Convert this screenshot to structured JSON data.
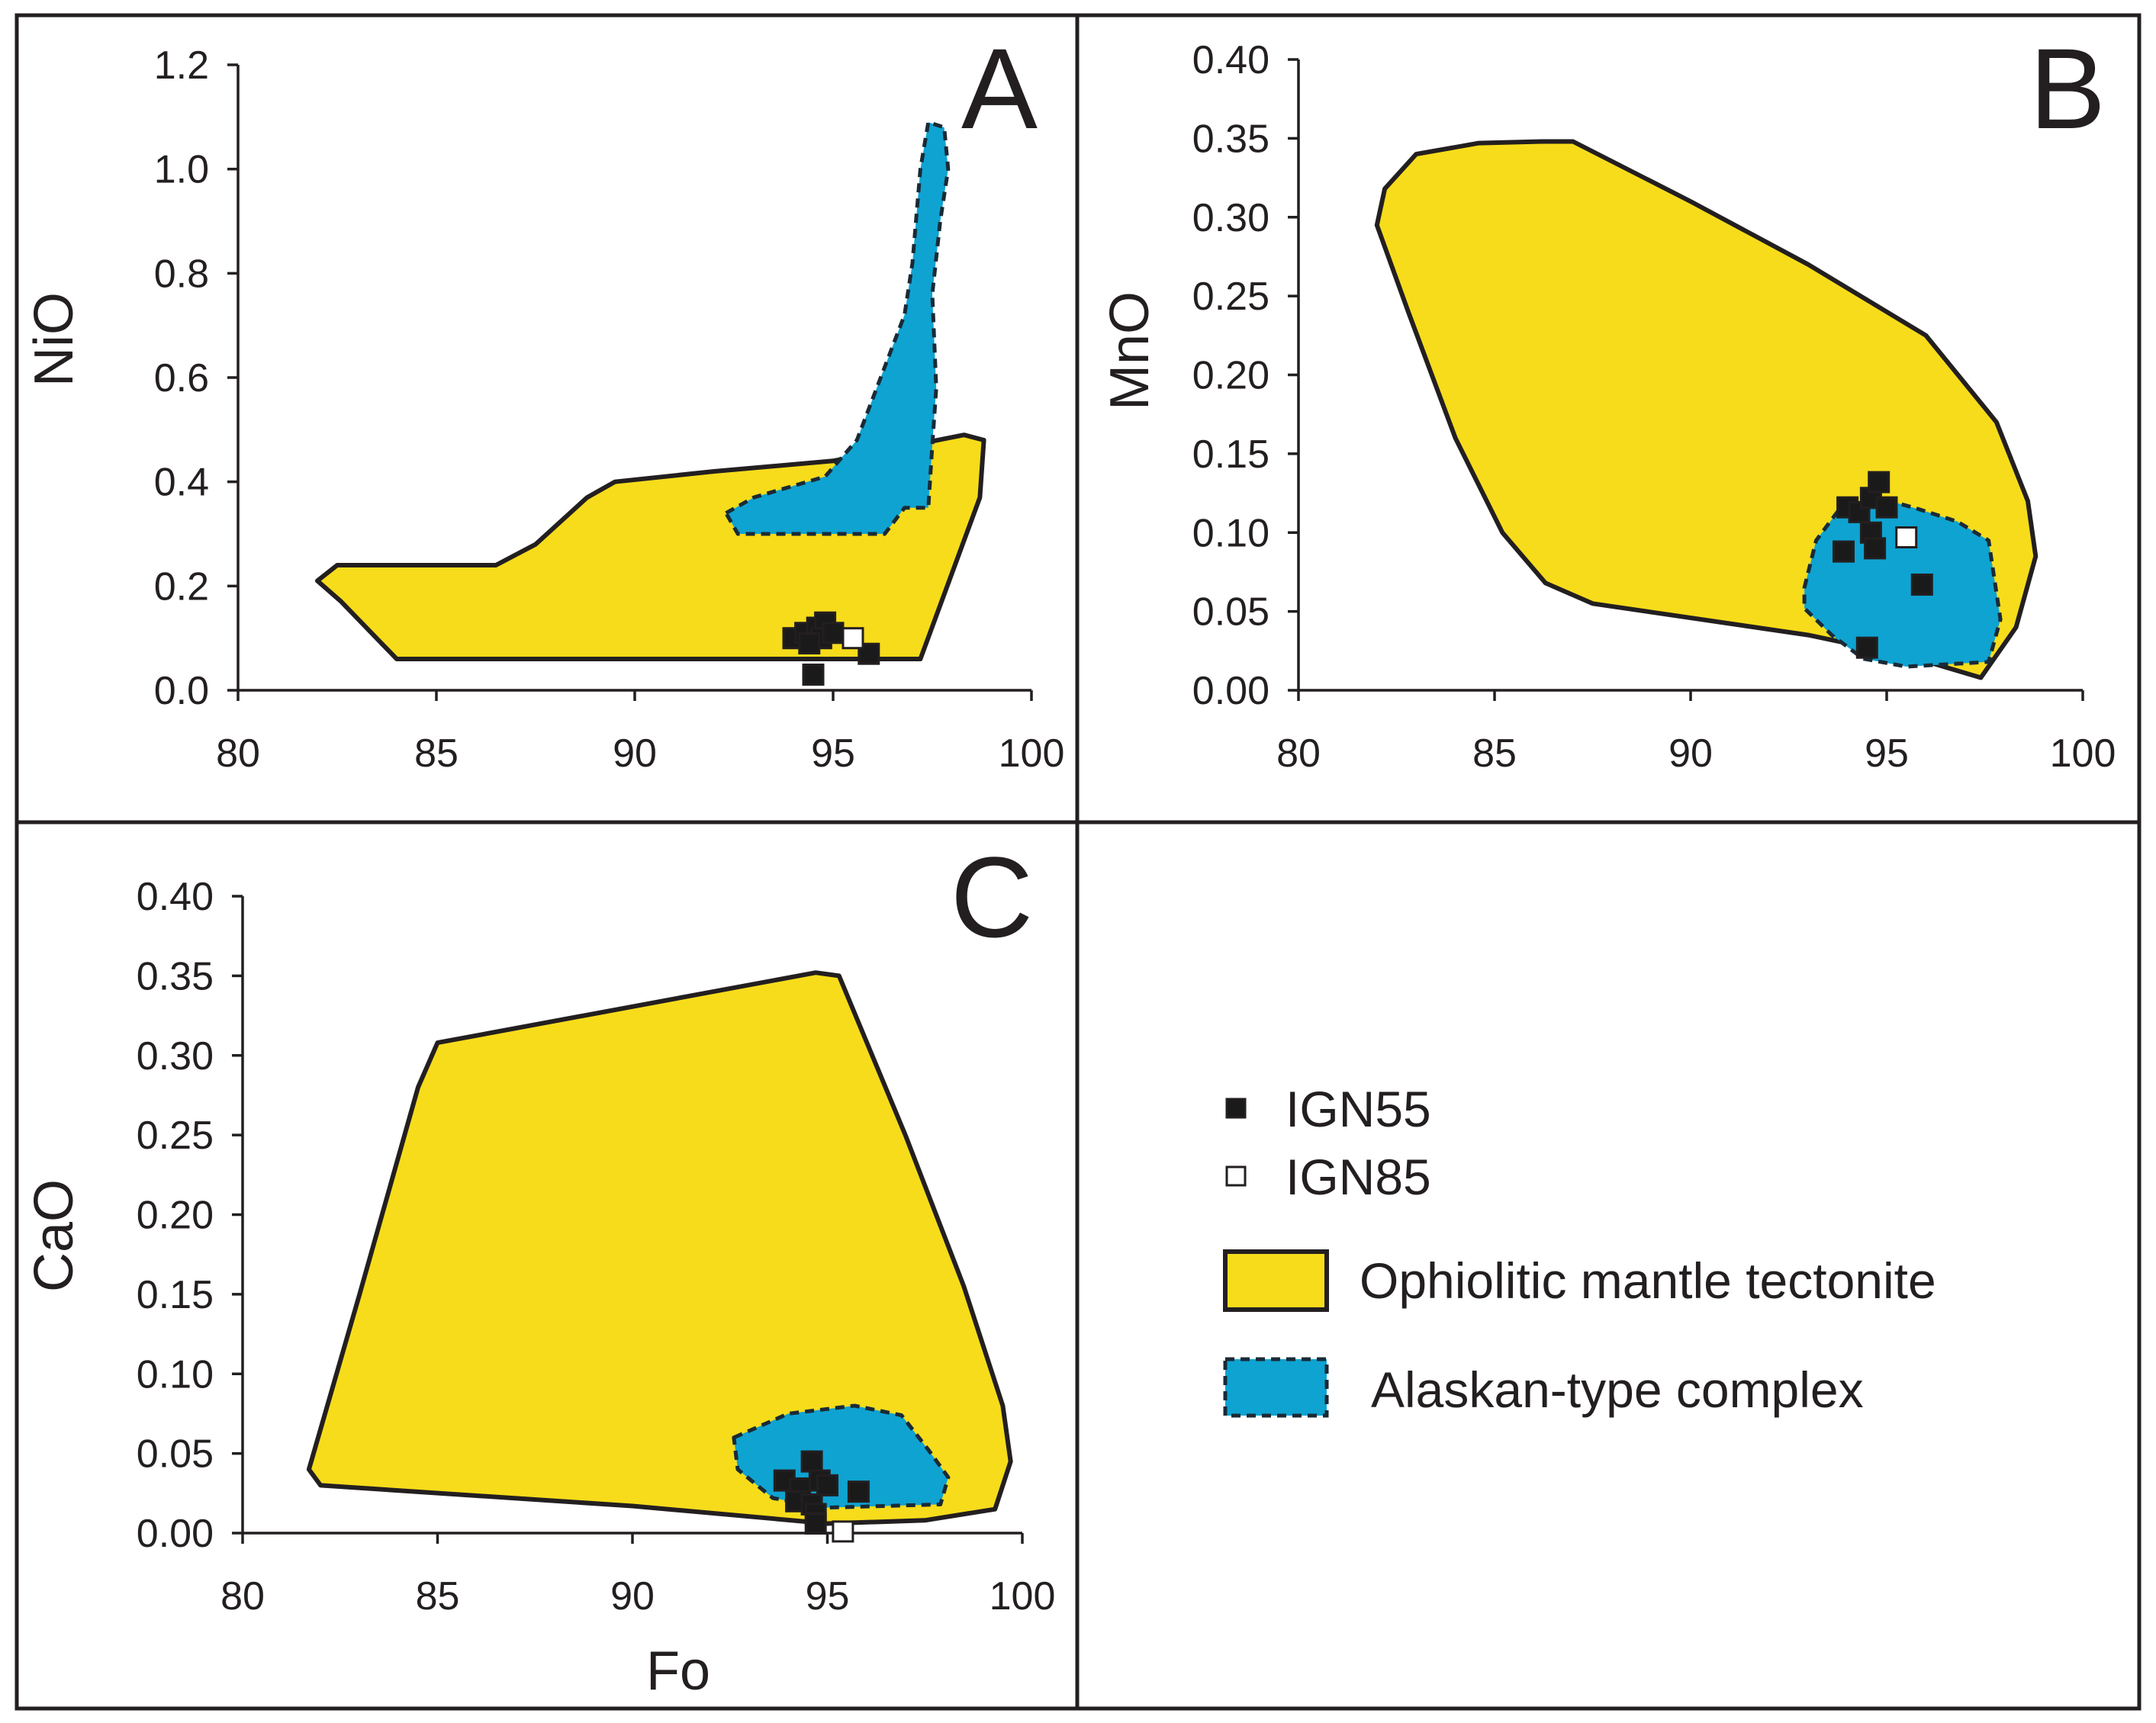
{
  "colors": {
    "ophiolite_fill": "#f7dc1b",
    "alaskan_fill": "#0fa3d1",
    "ign55_fill": "#1a1a1a",
    "ign85_fill": "#ffffff",
    "ink": "#231f20"
  },
  "legend": {
    "items": [
      {
        "label": "IGN55",
        "kind": "square-filled"
      },
      {
        "label": "IGN85",
        "kind": "square-open"
      },
      {
        "label": "Ophiolitic mantle tectonite",
        "kind": "field-ophiolite"
      },
      {
        "label": "Alaskan-type complex",
        "kind": "field-alaskan"
      }
    ]
  },
  "chart_data": [
    {
      "type": "scatter",
      "panel": "A",
      "xlabel": "",
      "ylabel": "NiO",
      "xlim": [
        80,
        100
      ],
      "ylim": [
        0,
        1.2
      ],
      "xticks": [
        "80",
        "85",
        "90",
        "95",
        "100"
      ],
      "yticks": [
        "0.0",
        "0.2",
        "0.4",
        "0.6",
        "0.8",
        "1.0",
        "1.2"
      ],
      "fields": [
        {
          "name": "Ophiolitic mantle tectonite",
          "polygon": [
            [
              84.0,
              0.06
            ],
            [
              97.2,
              0.06
            ],
            [
              98.7,
              0.37
            ],
            [
              98.8,
              0.48
            ],
            [
              98.3,
              0.49
            ],
            [
              95.0,
              0.44
            ],
            [
              92.0,
              0.42
            ],
            [
              89.5,
              0.4
            ],
            [
              88.8,
              0.37
            ],
            [
              87.5,
              0.28
            ],
            [
              86.5,
              0.24
            ],
            [
              82.5,
              0.24
            ],
            [
              82.0,
              0.21
            ],
            [
              82.6,
              0.17
            ]
          ]
        },
        {
          "name": "Alaskan-type complex",
          "polygon": [
            [
              92.3,
              0.34
            ],
            [
              93.0,
              0.37
            ],
            [
              94.8,
              0.41
            ],
            [
              95.6,
              0.48
            ],
            [
              96.2,
              0.6
            ],
            [
              96.8,
              0.72
            ],
            [
              97.0,
              0.82
            ],
            [
              97.2,
              1.0
            ],
            [
              97.4,
              1.09
            ],
            [
              97.8,
              1.08
            ],
            [
              97.9,
              1.0
            ],
            [
              97.7,
              0.9
            ],
            [
              97.5,
              0.76
            ],
            [
              97.6,
              0.58
            ],
            [
              97.5,
              0.47
            ],
            [
              97.4,
              0.35
            ],
            [
              96.8,
              0.35
            ],
            [
              96.3,
              0.3
            ],
            [
              94.0,
              0.3
            ],
            [
              92.6,
              0.3
            ]
          ]
        }
      ],
      "series": [
        {
          "name": "IGN55",
          "points": [
            [
              94.0,
              0.1
            ],
            [
              94.3,
              0.11
            ],
            [
              94.6,
              0.12
            ],
            [
              94.8,
              0.13
            ],
            [
              94.7,
              0.1
            ],
            [
              95.0,
              0.11
            ],
            [
              94.4,
              0.09
            ],
            [
              95.9,
              0.07
            ],
            [
              94.5,
              0.03
            ]
          ]
        },
        {
          "name": "IGN85",
          "points": [
            [
              95.5,
              0.1
            ]
          ]
        }
      ]
    },
    {
      "type": "scatter",
      "panel": "B",
      "xlabel": "",
      "ylabel": "MnO",
      "xlim": [
        80,
        100
      ],
      "ylim": [
        0,
        0.4
      ],
      "xticks": [
        "80",
        "85",
        "90",
        "95",
        "100"
      ],
      "yticks": [
        "0.00",
        "0.05",
        "0.10",
        "0.15",
        "0.20",
        "0.25",
        "0.30",
        "0.35",
        "0.40"
      ],
      "fields": [
        {
          "name": "Ophiolitic mantle tectonite",
          "polygon": [
            [
              87.0,
              0.348
            ],
            [
              86.2,
              0.348
            ],
            [
              84.6,
              0.347
            ],
            [
              83.0,
              0.34
            ],
            [
              82.2,
              0.318
            ],
            [
              82.0,
              0.295
            ],
            [
              82.8,
              0.24
            ],
            [
              84.0,
              0.16
            ],
            [
              85.2,
              0.1
            ],
            [
              86.3,
              0.068
            ],
            [
              87.5,
              0.055
            ],
            [
              93.0,
              0.035
            ],
            [
              95.5,
              0.022
            ],
            [
              97.4,
              0.008
            ],
            [
              98.3,
              0.04
            ],
            [
              98.8,
              0.085
            ],
            [
              98.6,
              0.12
            ],
            [
              97.8,
              0.17
            ],
            [
              96.0,
              0.225
            ],
            [
              93.0,
              0.27
            ],
            [
              90.0,
              0.31
            ]
          ]
        },
        {
          "name": "Alaskan-type complex",
          "polygon": [
            [
              92.9,
              0.065
            ],
            [
              93.2,
              0.095
            ],
            [
              93.8,
              0.115
            ],
            [
              94.8,
              0.122
            ],
            [
              95.8,
              0.115
            ],
            [
              96.8,
              0.107
            ],
            [
              97.6,
              0.095
            ],
            [
              97.9,
              0.045
            ],
            [
              97.6,
              0.018
            ],
            [
              95.5,
              0.015
            ],
            [
              94.4,
              0.02
            ],
            [
              93.6,
              0.035
            ],
            [
              92.9,
              0.052
            ]
          ]
        }
      ],
      "series": [
        {
          "name": "IGN55",
          "points": [
            [
              94.0,
              0.116
            ],
            [
              94.3,
              0.113
            ],
            [
              94.6,
              0.122
            ],
            [
              94.8,
              0.132
            ],
            [
              95.0,
              0.116
            ],
            [
              94.6,
              0.1
            ],
            [
              94.7,
              0.09
            ],
            [
              93.9,
              0.088
            ],
            [
              95.9,
              0.067
            ],
            [
              94.5,
              0.027
            ]
          ]
        },
        {
          "name": "IGN85",
          "points": [
            [
              95.5,
              0.097
            ]
          ]
        }
      ]
    },
    {
      "type": "scatter",
      "panel": "C",
      "xlabel": "Fo",
      "ylabel": "CaO",
      "xlim": [
        80,
        100
      ],
      "ylim": [
        0,
        0.4
      ],
      "xticks": [
        "80",
        "85",
        "90",
        "95",
        "100"
      ],
      "yticks": [
        "0.00",
        "0.05",
        "0.10",
        "0.15",
        "0.20",
        "0.25",
        "0.30",
        "0.35",
        "0.40"
      ],
      "fields": [
        {
          "name": "Ophiolitic mantle tectonite",
          "polygon": [
            [
              85.0,
              0.308
            ],
            [
              94.7,
              0.352
            ],
            [
              95.3,
              0.35
            ],
            [
              97.0,
              0.25
            ],
            [
              98.5,
              0.155
            ],
            [
              99.5,
              0.08
            ],
            [
              99.7,
              0.045
            ],
            [
              99.3,
              0.015
            ],
            [
              97.5,
              0.008
            ],
            [
              95.0,
              0.006
            ],
            [
              90.0,
              0.017
            ],
            [
              82.0,
              0.03
            ],
            [
              81.7,
              0.04
            ],
            [
              83.0,
              0.15
            ],
            [
              84.5,
              0.28
            ]
          ]
        },
        {
          "name": "Alaskan-type complex",
          "polygon": [
            [
              92.6,
              0.06
            ],
            [
              94.0,
              0.075
            ],
            [
              95.7,
              0.08
            ],
            [
              96.9,
              0.074
            ],
            [
              97.6,
              0.052
            ],
            [
              98.1,
              0.035
            ],
            [
              97.9,
              0.018
            ],
            [
              95.0,
              0.016
            ],
            [
              93.6,
              0.022
            ],
            [
              92.7,
              0.04
            ]
          ]
        }
      ],
      "series": [
        {
          "name": "IGN55",
          "points": [
            [
              93.9,
              0.033
            ],
            [
              94.3,
              0.028
            ],
            [
              94.6,
              0.045
            ],
            [
              94.8,
              0.033
            ],
            [
              95.0,
              0.03
            ],
            [
              94.2,
              0.02
            ],
            [
              94.6,
              0.018
            ],
            [
              94.7,
              0.012
            ],
            [
              95.8,
              0.026
            ],
            [
              94.7,
              0.006
            ]
          ]
        },
        {
          "name": "IGN85",
          "points": [
            [
              95.4,
              0.001
            ]
          ]
        }
      ]
    }
  ]
}
